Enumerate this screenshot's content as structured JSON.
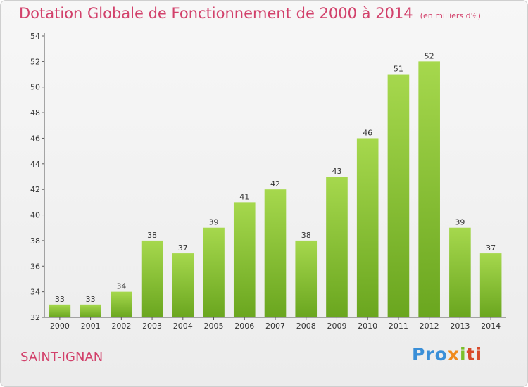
{
  "chart_data": {
    "type": "bar",
    "title": "Dotation Globale de Fonctionnement de 2000 à 2014",
    "subtitle": "(en milliers d'€)",
    "categories": [
      "2000",
      "2001",
      "2002",
      "2003",
      "2004",
      "2005",
      "2006",
      "2007",
      "2008",
      "2009",
      "2010",
      "2011",
      "2012",
      "2013",
      "2014"
    ],
    "values": [
      33,
      33,
      34,
      38,
      37,
      39,
      41,
      42,
      38,
      43,
      46,
      51,
      52,
      39,
      37
    ],
    "ylim": [
      32,
      54
    ],
    "yticks": [
      32,
      34,
      36,
      38,
      40,
      42,
      44,
      46,
      48,
      50,
      52,
      54
    ],
    "xlabel": "",
    "ylabel": "",
    "grid": false,
    "bar_color": "#7dbb2b",
    "bar_color_light": "#a6d84d"
  },
  "footer": {
    "place_name": "SAINT-IGNAN",
    "logo": {
      "p1": "Pro",
      "p2": "x",
      "p3": "i",
      "p4": "ti"
    }
  },
  "colors": {
    "accent": "#d2416b"
  }
}
